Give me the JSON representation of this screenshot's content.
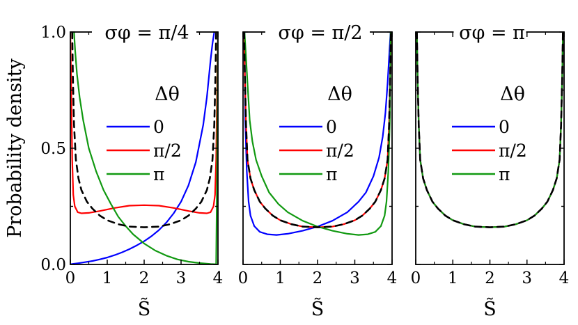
{
  "figure": {
    "ylabel": "Probability density",
    "xlabel": "S̃"
  },
  "chart_data": [
    {
      "type": "line",
      "title": "σφ = π/4",
      "legend_title": "Δθ",
      "legend_position": "middle-right",
      "xlabel": "S̃",
      "ylabel": "Probability density",
      "xlim": [
        0,
        4
      ],
      "ylim": [
        0,
        1
      ],
      "xticks": [
        "0",
        "1",
        "2",
        "3",
        "4"
      ],
      "yticks": [
        "0.0",
        "0.5",
        "1.0"
      ],
      "grid": false,
      "series": [
        {
          "name": "0",
          "color": "#0000ff",
          "style": "solid",
          "x": [
            0.0,
            0.01,
            0.05,
            0.1,
            0.2,
            0.4,
            0.6,
            0.8,
            1.0,
            1.2,
            1.4,
            1.6,
            1.8,
            2.0,
            2.2,
            2.4,
            2.6,
            2.8,
            3.0,
            3.2,
            3.4,
            3.6,
            3.7,
            3.8,
            3.85,
            3.9
          ],
          "y": [
            0.0,
            0.001,
            0.002,
            0.003,
            0.005,
            0.01,
            0.015,
            0.022,
            0.03,
            0.04,
            0.052,
            0.066,
            0.082,
            0.1,
            0.122,
            0.148,
            0.18,
            0.22,
            0.27,
            0.34,
            0.44,
            0.6,
            0.72,
            0.88,
            0.95,
            1.0
          ]
        },
        {
          "name": "π/2",
          "color": "#ff0000",
          "style": "solid",
          "x": [
            0.0,
            0.02,
            0.05,
            0.08,
            0.12,
            0.2,
            0.3,
            0.5,
            0.8,
            1.2,
            1.6,
            2.0,
            2.4,
            2.8,
            3.2,
            3.5,
            3.7,
            3.8,
            3.88,
            3.92,
            3.95,
            3.98,
            4.0
          ],
          "y": [
            1.0,
            0.8,
            0.45,
            0.3,
            0.25,
            0.225,
            0.22,
            0.222,
            0.23,
            0.243,
            0.253,
            0.255,
            0.253,
            0.243,
            0.23,
            0.222,
            0.22,
            0.225,
            0.25,
            0.3,
            0.45,
            0.8,
            1.0
          ]
        },
        {
          "name": "π",
          "color": "#119911",
          "style": "solid",
          "x": [
            0.1,
            0.13,
            0.18,
            0.25,
            0.35,
            0.5,
            0.7,
            0.9,
            1.1,
            1.3,
            1.5,
            1.7,
            2.0,
            2.3,
            2.6,
            2.9,
            3.2,
            3.5,
            3.8,
            3.95,
            3.97,
            3.99,
            4.0
          ],
          "y": [
            1.0,
            0.92,
            0.82,
            0.72,
            0.62,
            0.5,
            0.4,
            0.32,
            0.26,
            0.205,
            0.165,
            0.13,
            0.09,
            0.06,
            0.038,
            0.022,
            0.012,
            0.006,
            0.002,
            0.001,
            0.3,
            0.8,
            1.0
          ]
        },
        {
          "name": "",
          "color": "#000000",
          "style": "dashed",
          "x": [
            0.05,
            0.07,
            0.1,
            0.15,
            0.22,
            0.3,
            0.45,
            0.6,
            0.8,
            1.0,
            1.3,
            1.6,
            2.0,
            2.4,
            2.7,
            3.0,
            3.2,
            3.4,
            3.55,
            3.7,
            3.78,
            3.85,
            3.9,
            3.93,
            3.95
          ],
          "y": [
            1.0,
            0.8,
            0.6,
            0.45,
            0.37,
            0.32,
            0.27,
            0.24,
            0.21,
            0.19,
            0.173,
            0.163,
            0.16,
            0.163,
            0.173,
            0.19,
            0.21,
            0.24,
            0.27,
            0.32,
            0.37,
            0.45,
            0.6,
            0.8,
            1.0
          ]
        }
      ]
    },
    {
      "type": "line",
      "title": "σφ = π/2",
      "legend_title": "Δθ",
      "legend_position": "middle-right",
      "xlabel": "S̃",
      "xlim": [
        0,
        4
      ],
      "ylim": [
        0,
        1
      ],
      "xticks": [
        "0",
        "1",
        "2",
        "3",
        "4"
      ],
      "grid": false,
      "series": [
        {
          "name": "0",
          "color": "#0000ff",
          "style": "solid",
          "x": [
            0.04,
            0.06,
            0.1,
            0.15,
            0.2,
            0.3,
            0.45,
            0.65,
            0.9,
            1.2,
            1.6,
            2.0,
            2.4,
            2.8,
            3.1,
            3.3,
            3.5,
            3.65,
            3.75,
            3.82,
            3.88,
            3.93,
            3.96
          ],
          "y": [
            1.0,
            0.62,
            0.4,
            0.27,
            0.21,
            0.165,
            0.14,
            0.13,
            0.127,
            0.132,
            0.145,
            0.163,
            0.188,
            0.225,
            0.27,
            0.31,
            0.38,
            0.46,
            0.55,
            0.65,
            0.78,
            0.92,
            1.0
          ]
        },
        {
          "name": "π/2",
          "color": "#ff0000",
          "style": "solid",
          "x": [
            0.03,
            0.05,
            0.08,
            0.12,
            0.2,
            0.3,
            0.45,
            0.6,
            0.8,
            1.0,
            1.3,
            1.6,
            2.0,
            2.4,
            2.7,
            3.0,
            3.2,
            3.4,
            3.55,
            3.7,
            3.8,
            3.88,
            3.92,
            3.95,
            3.97
          ],
          "y": [
            1.0,
            0.8,
            0.6,
            0.45,
            0.37,
            0.32,
            0.27,
            0.24,
            0.21,
            0.19,
            0.173,
            0.163,
            0.16,
            0.163,
            0.173,
            0.19,
            0.21,
            0.24,
            0.27,
            0.32,
            0.37,
            0.45,
            0.6,
            0.8,
            1.0
          ]
        },
        {
          "name": "π",
          "color": "#119911",
          "style": "solid",
          "x": [
            0.04,
            0.07,
            0.12,
            0.18,
            0.25,
            0.35,
            0.5,
            0.7,
            0.95,
            1.2,
            1.6,
            2.0,
            2.4,
            2.8,
            3.1,
            3.35,
            3.55,
            3.7,
            3.8,
            3.85,
            3.9,
            3.94,
            3.96
          ],
          "y": [
            1.0,
            0.92,
            0.78,
            0.62,
            0.53,
            0.45,
            0.38,
            0.31,
            0.26,
            0.225,
            0.188,
            0.163,
            0.145,
            0.132,
            0.127,
            0.13,
            0.14,
            0.165,
            0.21,
            0.27,
            0.4,
            0.62,
            1.0
          ]
        },
        {
          "name": "",
          "color": "#000000",
          "style": "dashed",
          "x": [
            0.03,
            0.05,
            0.08,
            0.12,
            0.2,
            0.3,
            0.45,
            0.6,
            0.8,
            1.0,
            1.3,
            1.6,
            2.0,
            2.4,
            2.7,
            3.0,
            3.2,
            3.4,
            3.55,
            3.7,
            3.8,
            3.88,
            3.92,
            3.95,
            3.97
          ],
          "y": [
            1.0,
            0.8,
            0.6,
            0.45,
            0.37,
            0.32,
            0.27,
            0.24,
            0.21,
            0.19,
            0.173,
            0.163,
            0.16,
            0.163,
            0.173,
            0.19,
            0.21,
            0.24,
            0.27,
            0.32,
            0.37,
            0.45,
            0.6,
            0.8,
            1.0
          ]
        }
      ]
    },
    {
      "type": "line",
      "title": "σφ = π",
      "legend_title": "Δθ",
      "legend_position": "middle-right",
      "xlabel": "S̃",
      "xlim": [
        0,
        4
      ],
      "ylim": [
        0,
        1
      ],
      "xticks": [
        "0",
        "1",
        "2",
        "3",
        "4"
      ],
      "grid": false,
      "series": [
        {
          "name": "0",
          "color": "#0000ff",
          "style": "solid",
          "x": [
            0.03,
            0.05,
            0.08,
            0.12,
            0.2,
            0.3,
            0.45,
            0.6,
            0.8,
            1.0,
            1.3,
            1.6,
            2.0,
            2.4,
            2.7,
            3.0,
            3.2,
            3.4,
            3.55,
            3.7,
            3.8,
            3.88,
            3.92,
            3.95,
            3.97
          ],
          "y": [
            1.0,
            0.8,
            0.6,
            0.45,
            0.37,
            0.32,
            0.27,
            0.24,
            0.21,
            0.19,
            0.173,
            0.163,
            0.16,
            0.163,
            0.173,
            0.19,
            0.21,
            0.24,
            0.27,
            0.32,
            0.37,
            0.45,
            0.6,
            0.8,
            1.0
          ]
        },
        {
          "name": "π/2",
          "color": "#ff0000",
          "style": "solid",
          "x": [
            0.03,
            0.05,
            0.08,
            0.12,
            0.2,
            0.3,
            0.45,
            0.6,
            0.8,
            1.0,
            1.3,
            1.6,
            2.0,
            2.4,
            2.7,
            3.0,
            3.2,
            3.4,
            3.55,
            3.7,
            3.8,
            3.88,
            3.92,
            3.95,
            3.97
          ],
          "y": [
            1.0,
            0.8,
            0.6,
            0.45,
            0.37,
            0.32,
            0.27,
            0.24,
            0.21,
            0.19,
            0.173,
            0.163,
            0.16,
            0.163,
            0.173,
            0.19,
            0.21,
            0.24,
            0.27,
            0.32,
            0.37,
            0.45,
            0.6,
            0.8,
            1.0
          ]
        },
        {
          "name": "π",
          "color": "#119911",
          "style": "solid",
          "x": [
            0.03,
            0.05,
            0.08,
            0.12,
            0.2,
            0.3,
            0.45,
            0.6,
            0.8,
            1.0,
            1.3,
            1.6,
            2.0,
            2.4,
            2.7,
            3.0,
            3.2,
            3.4,
            3.55,
            3.7,
            3.8,
            3.88,
            3.92,
            3.95,
            3.97
          ],
          "y": [
            1.0,
            0.8,
            0.6,
            0.45,
            0.37,
            0.32,
            0.27,
            0.24,
            0.21,
            0.19,
            0.173,
            0.163,
            0.16,
            0.163,
            0.173,
            0.19,
            0.21,
            0.24,
            0.27,
            0.32,
            0.37,
            0.45,
            0.6,
            0.8,
            1.0
          ]
        },
        {
          "name": "",
          "color": "#000000",
          "style": "dashed",
          "x": [
            0.03,
            0.05,
            0.08,
            0.12,
            0.2,
            0.3,
            0.45,
            0.6,
            0.8,
            1.0,
            1.3,
            1.6,
            2.0,
            2.4,
            2.7,
            3.0,
            3.2,
            3.4,
            3.55,
            3.7,
            3.8,
            3.88,
            3.92,
            3.95,
            3.97
          ],
          "y": [
            1.0,
            0.8,
            0.6,
            0.45,
            0.37,
            0.32,
            0.27,
            0.24,
            0.21,
            0.19,
            0.173,
            0.163,
            0.16,
            0.163,
            0.173,
            0.19,
            0.21,
            0.24,
            0.27,
            0.32,
            0.37,
            0.45,
            0.6,
            0.8,
            1.0
          ]
        }
      ]
    }
  ]
}
